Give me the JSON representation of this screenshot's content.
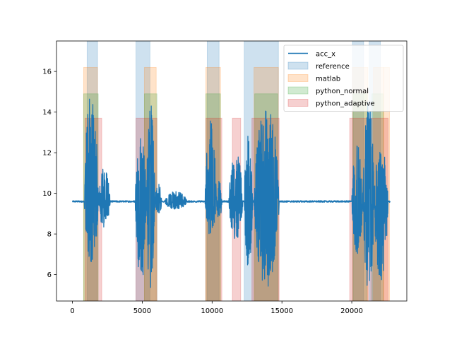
{
  "chart_data": {
    "type": "line",
    "title": "",
    "xlabel": "",
    "ylabel": "",
    "xlim": [
      -1140,
      23940
    ],
    "ylim": [
      4.7,
      17.5
    ],
    "xticks": [
      0,
      5000,
      10000,
      15000,
      20000
    ],
    "yticks": [
      6,
      8,
      10,
      12,
      14,
      16
    ],
    "grid": false,
    "legend_position": "top-right",
    "line_series": {
      "name": "acc_x",
      "color": "#1f77b4",
      "baseline": 9.6,
      "x_range": [
        0,
        22750
      ],
      "bursts": [
        {
          "x0": 850,
          "x1": 1850,
          "lo": 6.5,
          "hi": 15.0
        },
        {
          "x0": 1850,
          "x1": 2700,
          "lo": 8.3,
          "hi": 11.3
        },
        {
          "x0": 4500,
          "x1": 5300,
          "lo": 5.5,
          "hi": 12.8
        },
        {
          "x0": 5300,
          "x1": 5900,
          "lo": 4.9,
          "hi": 14.5
        },
        {
          "x0": 5900,
          "x1": 6400,
          "lo": 8.9,
          "hi": 10.5
        },
        {
          "x0": 6600,
          "x1": 8200,
          "lo": 9.2,
          "hi": 10.1
        },
        {
          "x0": 9500,
          "x1": 10300,
          "lo": 7.9,
          "hi": 13.6
        },
        {
          "x0": 10300,
          "x1": 10700,
          "lo": 8.7,
          "hi": 10.6
        },
        {
          "x0": 11200,
          "x1": 12200,
          "lo": 7.7,
          "hi": 12.0
        },
        {
          "x0": 12300,
          "x1": 12900,
          "lo": 6.3,
          "hi": 12.9
        },
        {
          "x0": 13000,
          "x1": 14800,
          "lo": 5.3,
          "hi": 14.5
        },
        {
          "x0": 20000,
          "x1": 20800,
          "lo": 7.0,
          "hi": 12.5
        },
        {
          "x0": 20800,
          "x1": 21600,
          "lo": 5.0,
          "hi": 14.6
        },
        {
          "x0": 21600,
          "x1": 22600,
          "lo": 5.6,
          "hi": 12.3
        }
      ]
    },
    "span_series": [
      {
        "name": "reference",
        "color": "#1f77b4",
        "ymax": 17.5,
        "spans": [
          [
            1050,
            1800
          ],
          [
            4550,
            5550
          ],
          [
            9650,
            10500
          ],
          [
            12300,
            14750
          ],
          [
            20050,
            20850
          ],
          [
            21250,
            22050
          ]
        ]
      },
      {
        "name": "matlab",
        "color": "#ff7f0e",
        "ymax": 16.2,
        "spans": [
          [
            800,
            1800
          ],
          [
            5150,
            6000
          ],
          [
            9550,
            10600
          ],
          [
            13000,
            14750
          ],
          [
            20050,
            21150
          ],
          [
            21550,
            22300
          ],
          [
            22300,
            22700
          ]
        ]
      },
      {
        "name": "python_normal",
        "color": "#2ca02c",
        "ymax": 14.9,
        "spans": [
          [
            800,
            1850
          ],
          [
            5150,
            6050
          ],
          [
            9550,
            10600
          ],
          [
            13050,
            14700
          ],
          [
            20100,
            21100
          ],
          [
            21450,
            22250
          ]
        ]
      },
      {
        "name": "python_adaptive",
        "color": "#d62728",
        "ymax": 13.7,
        "spans": [
          [
            900,
            2100
          ],
          [
            4550,
            6050
          ],
          [
            9550,
            10700
          ],
          [
            11450,
            12050
          ],
          [
            12850,
            14800
          ],
          [
            19850,
            21250
          ],
          [
            21350,
            22600
          ]
        ]
      }
    ]
  }
}
